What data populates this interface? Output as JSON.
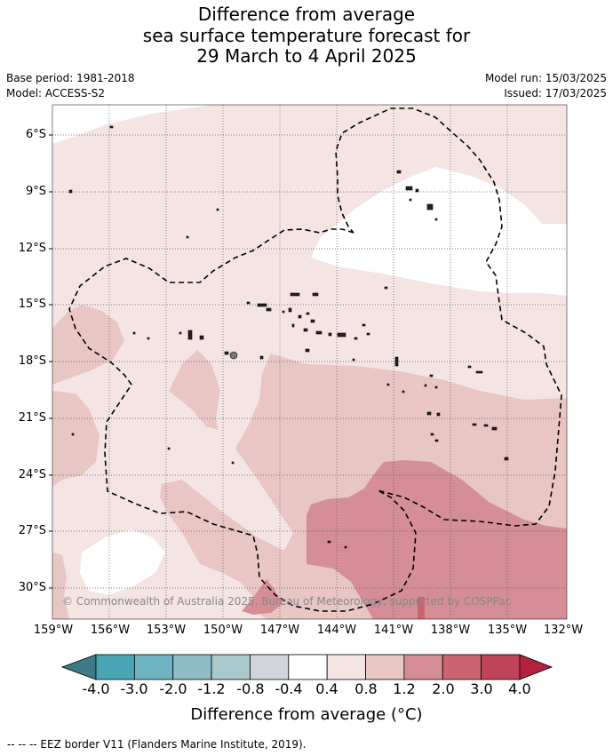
{
  "title": {
    "line1": "Difference from average",
    "line2": "sea surface temperature forecast for",
    "line3": "29 March to 4 April 2025"
  },
  "meta": {
    "base_period": "Base period: 1981-2018",
    "model": "Model: ACCESS-S2",
    "model_run": "Model run: 15/03/2025",
    "issued": "Issued: 17/03/2025"
  },
  "map": {
    "lat_ticks": [
      "6°S",
      "9°S",
      "12°S",
      "15°S",
      "18°S",
      "21°S",
      "24°S",
      "27°S",
      "30°S"
    ],
    "lon_ticks": [
      "159°W",
      "156°W",
      "153°W",
      "150°W",
      "147°W",
      "144°W",
      "141°W",
      "138°W",
      "135°W",
      "132°W"
    ],
    "copyright": "© Commonwealth of Australia 2025, Bureau of Meteorology, supported by COSPPac",
    "eez_style": "dashed"
  },
  "colorbar": {
    "title": "Difference from average (°C)",
    "labels": [
      "-4.0",
      "-3.0",
      "-2.0",
      "-1.2",
      "-0.8",
      "-0.4",
      "0.4",
      "0.8",
      "1.2",
      "2.0",
      "3.0",
      "4.0"
    ],
    "colors": [
      "#3c7a86",
      "#4aa6b6",
      "#6fb2c0",
      "#8ebdc8",
      "#a9c9cd",
      "#d1d5d9",
      "#ffffff",
      "#f4e5e4",
      "#e7c6c3",
      "#d58e95",
      "#cc6470",
      "#c04457",
      "#b4203e"
    ]
  },
  "footnote": "--  --  -- EEZ border V11 (Flanders Marine Institute, 2019)."
}
